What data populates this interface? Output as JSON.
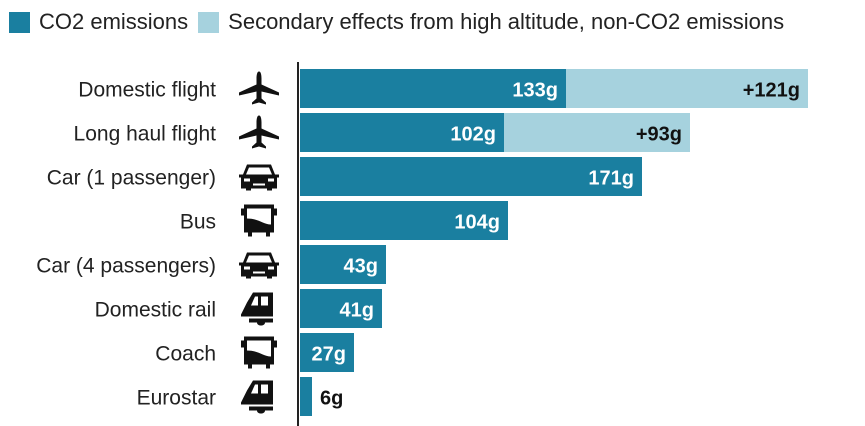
{
  "chart_data": {
    "type": "bar",
    "orientation": "horizontal",
    "stacked": true,
    "categories": [
      "Domestic flight",
      "Long haul flight",
      "Car (1 passenger)",
      "Bus",
      "Car (4 passengers)",
      "Domestic rail",
      "Coach",
      "Eurostar"
    ],
    "icons": [
      "plane-icon",
      "plane-icon",
      "car-icon",
      "bus-icon",
      "car-icon",
      "train-icon",
      "bus-icon",
      "train-icon"
    ],
    "series": [
      {
        "name": "CO2 emissions",
        "color": "#1a7fa0",
        "values": [
          133,
          102,
          171,
          104,
          43,
          41,
          27,
          6
        ],
        "labels": [
          "133g",
          "102g",
          "171g",
          "104g",
          "43g",
          "41g",
          "27g",
          "6g"
        ]
      },
      {
        "name": "Secondary effects from high altitude, non-CO2 emissions",
        "color": "#a6d2de",
        "values": [
          121,
          93,
          0,
          0,
          0,
          0,
          0,
          0
        ],
        "labels": [
          "+121g",
          "+93g",
          "",
          "",
          "",
          "",
          "",
          ""
        ]
      }
    ],
    "unit": "g",
    "grid": false,
    "legend_position": "top"
  }
}
